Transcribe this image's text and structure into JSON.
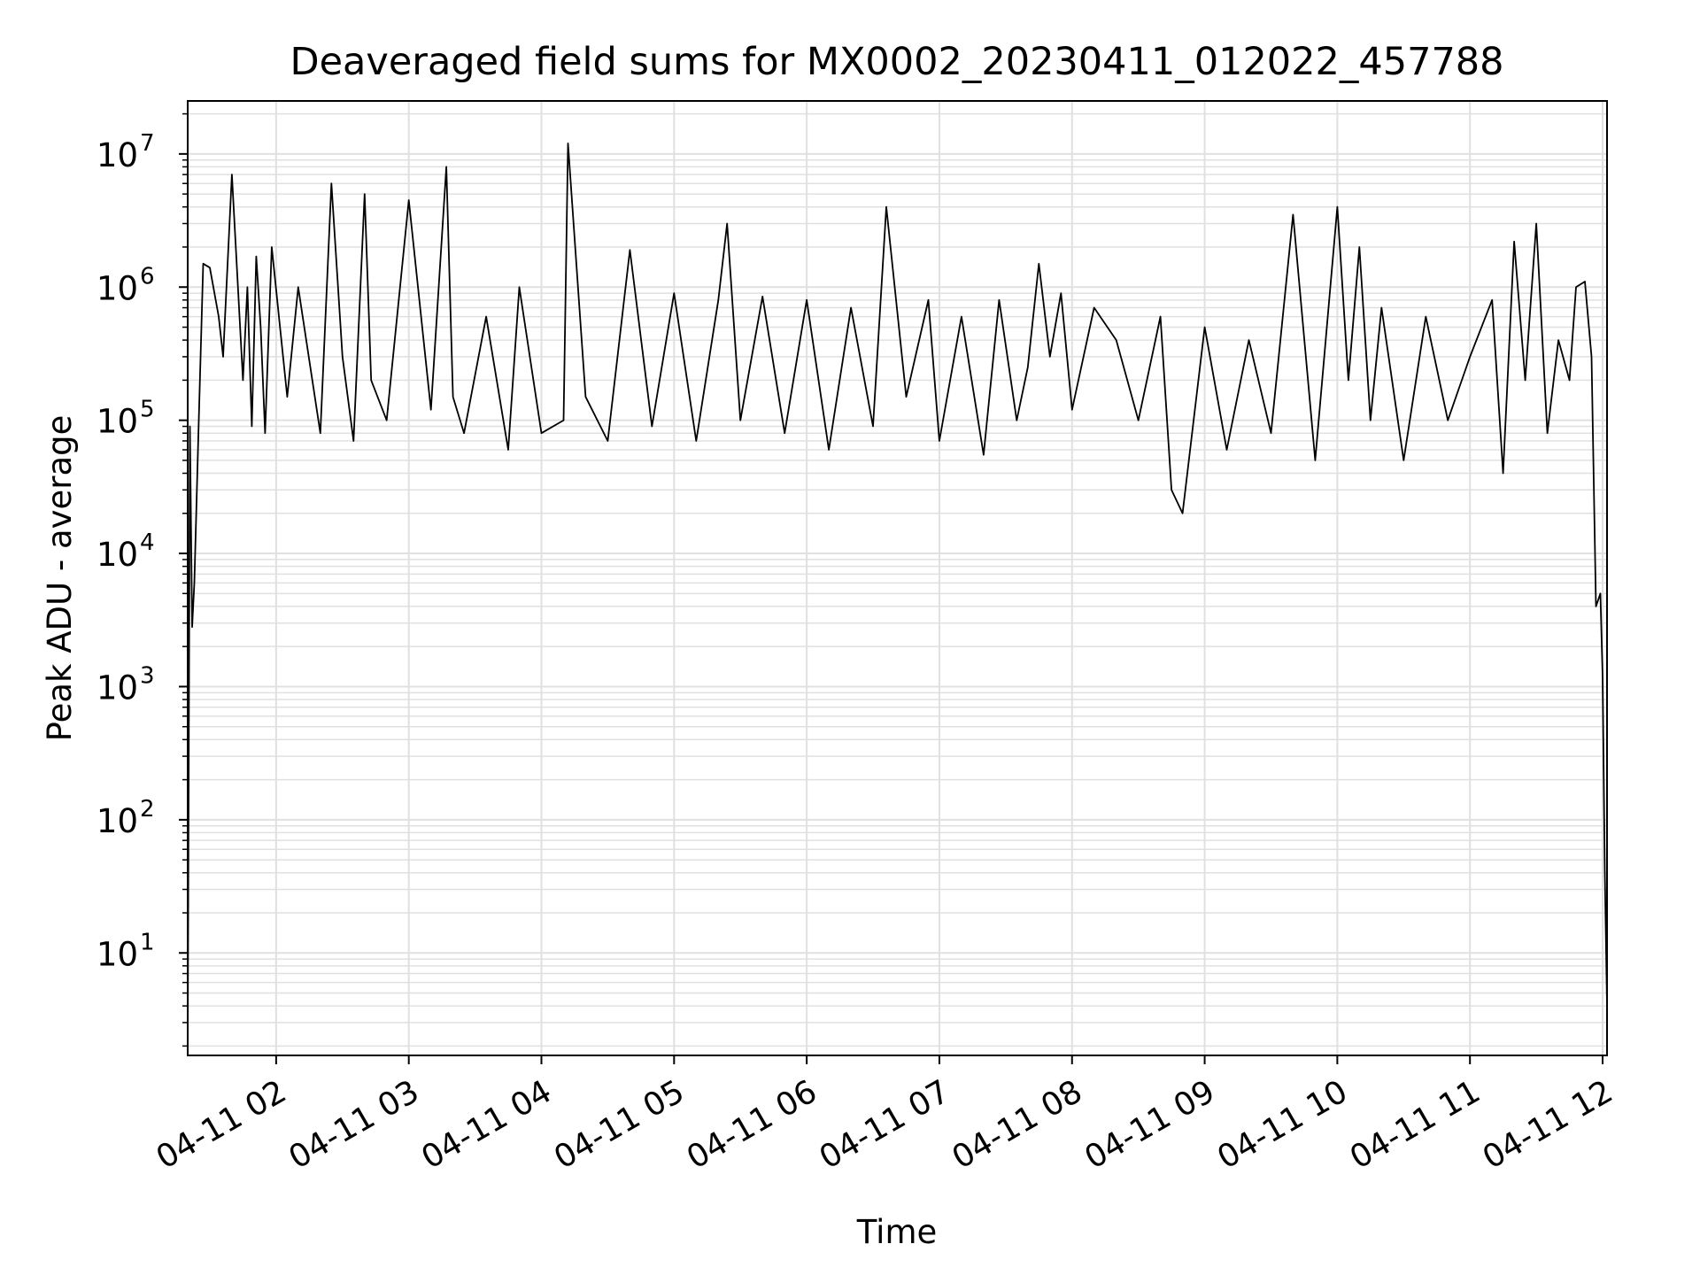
{
  "chart_data": {
    "type": "line",
    "title": "Deaveraged field sums for MX0002_20230411_012022_457788",
    "xlabel": "Time",
    "ylabel": "Peak ADU - average",
    "yscale": "log",
    "xlim": [
      "2023-04-11 01:20",
      "2023-04-11 12:02"
    ],
    "ylim": [
      1.7,
      25000000
    ],
    "x_tick_labels": [
      {
        "time": "2023-04-11 02:00",
        "label": "04-11 02"
      },
      {
        "time": "2023-04-11 03:00",
        "label": "04-11 03"
      },
      {
        "time": "2023-04-11 04:00",
        "label": "04-11 04"
      },
      {
        "time": "2023-04-11 05:00",
        "label": "04-11 05"
      },
      {
        "time": "2023-04-11 06:00",
        "label": "04-11 06"
      },
      {
        "time": "2023-04-11 07:00",
        "label": "04-11 07"
      },
      {
        "time": "2023-04-11 08:00",
        "label": "04-11 08"
      },
      {
        "time": "2023-04-11 09:00",
        "label": "04-11 09"
      },
      {
        "time": "2023-04-11 10:00",
        "label": "04-11 10"
      },
      {
        "time": "2023-04-11 11:00",
        "label": "04-11 11"
      },
      {
        "time": "2023-04-11 12:00",
        "label": "04-11 12"
      }
    ],
    "y_tick_labels": [
      {
        "value": 10,
        "base": "10",
        "exp": "1"
      },
      {
        "value": 100,
        "base": "10",
        "exp": "2"
      },
      {
        "value": 1000,
        "base": "10",
        "exp": "3"
      },
      {
        "value": 10000,
        "base": "10",
        "exp": "4"
      },
      {
        "value": 100000,
        "base": "10",
        "exp": "5"
      },
      {
        "value": 1000000,
        "base": "10",
        "exp": "6"
      },
      {
        "value": 10000000,
        "base": "10",
        "exp": "7"
      }
    ],
    "grid": true,
    "grid_color": "#e0e0e0",
    "line_color": "#000000",
    "series": [
      {
        "x": [
          "2023-04-11 01:20",
          "2023-04-11 01:21",
          "2023-04-11 01:22",
          "2023-04-11 01:23",
          "2023-04-11 01:25",
          "2023-04-11 01:27",
          "2023-04-11 01:30",
          "2023-04-11 01:34",
          "2023-04-11 01:36",
          "2023-04-11 01:40",
          "2023-04-11 01:45",
          "2023-04-11 01:47",
          "2023-04-11 01:49",
          "2023-04-11 01:51",
          "2023-04-11 01:53",
          "2023-04-11 01:55",
          "2023-04-11 01:58",
          "2023-04-11 02:05",
          "2023-04-11 02:10",
          "2023-04-11 02:20",
          "2023-04-11 02:25",
          "2023-04-11 02:30",
          "2023-04-11 02:35",
          "2023-04-11 02:40",
          "2023-04-11 02:43",
          "2023-04-11 02:50",
          "2023-04-11 03:00",
          "2023-04-11 03:10",
          "2023-04-11 03:17",
          "2023-04-11 03:20",
          "2023-04-11 03:25",
          "2023-04-11 03:35",
          "2023-04-11 03:45",
          "2023-04-11 03:50",
          "2023-04-11 04:00",
          "2023-04-11 04:10",
          "2023-04-11 04:12",
          "2023-04-11 04:20",
          "2023-04-11 04:30",
          "2023-04-11 04:40",
          "2023-04-11 04:50",
          "2023-04-11 05:00",
          "2023-04-11 05:10",
          "2023-04-11 05:20",
          "2023-04-11 05:24",
          "2023-04-11 05:30",
          "2023-04-11 05:40",
          "2023-04-11 05:50",
          "2023-04-11 06:00",
          "2023-04-11 06:10",
          "2023-04-11 06:20",
          "2023-04-11 06:30",
          "2023-04-11 06:36",
          "2023-04-11 06:45",
          "2023-04-11 06:55",
          "2023-04-11 07:00",
          "2023-04-11 07:10",
          "2023-04-11 07:20",
          "2023-04-11 07:27",
          "2023-04-11 07:35",
          "2023-04-11 07:40",
          "2023-04-11 07:45",
          "2023-04-11 07:50",
          "2023-04-11 07:55",
          "2023-04-11 08:00",
          "2023-04-11 08:10",
          "2023-04-11 08:20",
          "2023-04-11 08:30",
          "2023-04-11 08:40",
          "2023-04-11 08:45",
          "2023-04-11 08:50",
          "2023-04-11 09:00",
          "2023-04-11 09:10",
          "2023-04-11 09:20",
          "2023-04-11 09:30",
          "2023-04-11 09:40",
          "2023-04-11 09:50",
          "2023-04-11 10:00",
          "2023-04-11 10:05",
          "2023-04-11 10:10",
          "2023-04-11 10:15",
          "2023-04-11 10:20",
          "2023-04-11 10:30",
          "2023-04-11 10:40",
          "2023-04-11 10:50",
          "2023-04-11 11:00",
          "2023-04-11 11:10",
          "2023-04-11 11:15",
          "2023-04-11 11:20",
          "2023-04-11 11:25",
          "2023-04-11 11:30",
          "2023-04-11 11:35",
          "2023-04-11 11:40",
          "2023-04-11 11:45",
          "2023-04-11 11:48",
          "2023-04-11 11:52",
          "2023-04-11 11:55",
          "2023-04-11 11:57",
          "2023-04-11 11:59",
          "2023-04-11 12:00",
          "2023-04-11 12:01",
          "2023-04-11 12:02"
        ],
        "y": [
          1.8,
          90000,
          2800,
          6000,
          100000,
          1500000,
          1400000,
          600000,
          300000,
          7000000,
          200000,
          1000000,
          90000,
          1700000,
          500000,
          80000,
          2000000,
          150000,
          1000000,
          80000,
          6000000,
          300000,
          70000,
          5000000,
          200000,
          100000,
          4500000,
          120000,
          8000000,
          150000,
          80000,
          600000,
          60000,
          1000000,
          80000,
          100000,
          12000000,
          150000,
          70000,
          1900000,
          90000,
          900000,
          70000,
          800000,
          3000000,
          100000,
          850000,
          80000,
          800000,
          60000,
          700000,
          90000,
          4000000,
          150000,
          800000,
          70000,
          600000,
          55000,
          800000,
          100000,
          250000,
          1500000,
          300000,
          900000,
          120000,
          700000,
          400000,
          100000,
          600000,
          30000,
          20000,
          500000,
          60000,
          400000,
          80000,
          3500000,
          50000,
          4000000,
          200000,
          2000000,
          100000,
          700000,
          50000,
          600000,
          100000,
          300000,
          800000,
          40000,
          2200000,
          200000,
          3000000,
          80000,
          400000,
          200000,
          1000000,
          1100000,
          300000,
          4000,
          5000,
          1200,
          40,
          4
        ]
      }
    ]
  }
}
